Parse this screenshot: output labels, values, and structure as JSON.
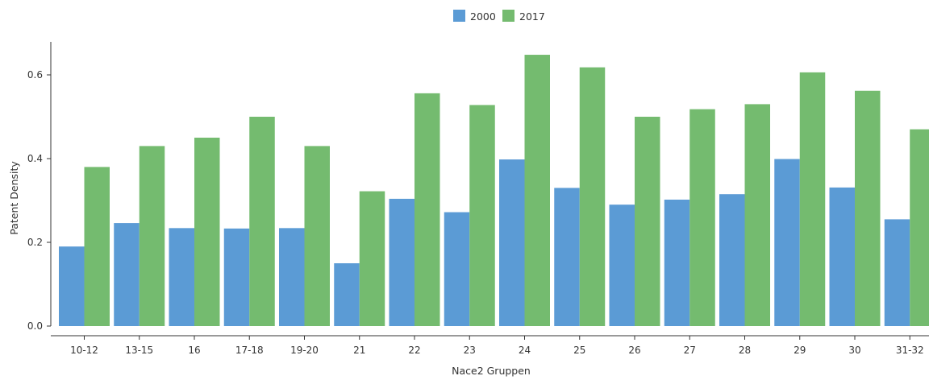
{
  "chart_data": {
    "type": "bar",
    "categories": [
      "10-12",
      "13-15",
      "16",
      "17-18",
      "19-20",
      "21",
      "22",
      "23",
      "24",
      "25",
      "26",
      "27",
      "28",
      "29",
      "30",
      "31-32"
    ],
    "series": [
      {
        "name": "2000",
        "color": "#5b9bd5",
        "values": [
          0.19,
          0.246,
          0.234,
          0.233,
          0.234,
          0.15,
          0.304,
          0.272,
          0.398,
          0.33,
          0.29,
          0.302,
          0.315,
          0.399,
          0.331,
          0.255
        ]
      },
      {
        "name": "2017",
        "color": "#74bb6f",
        "values": [
          0.38,
          0.43,
          0.45,
          0.5,
          0.43,
          0.322,
          0.556,
          0.528,
          0.648,
          0.618,
          0.5,
          0.518,
          0.53,
          0.606,
          0.562,
          0.47
        ]
      }
    ],
    "xlabel": "Nace2 Gruppen",
    "ylabel": "Patent Density",
    "ylim": [
      0,
      0.68
    ],
    "yticks": [
      "0.0",
      "0.2",
      "0.4",
      "0.6"
    ],
    "legend": "top-center",
    "grid": false
  }
}
